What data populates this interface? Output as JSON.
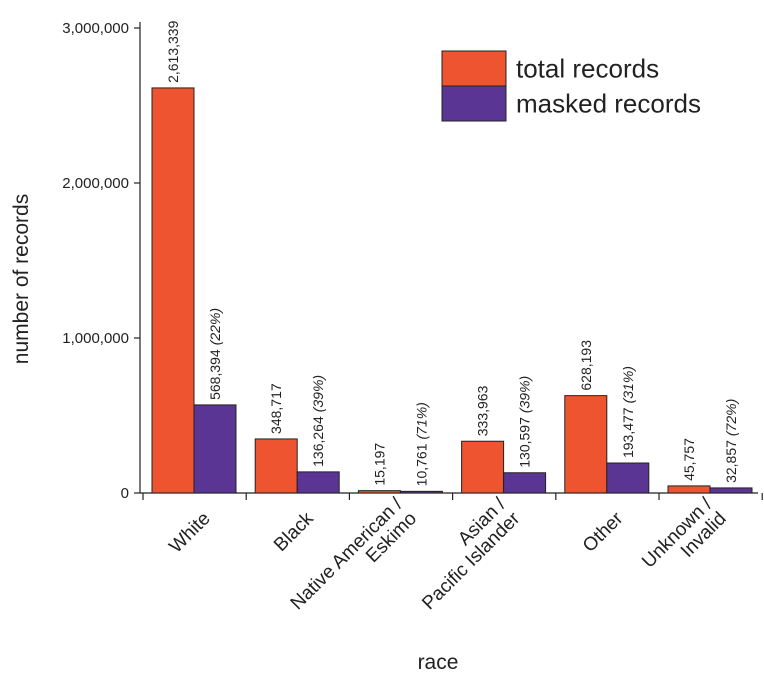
{
  "chart_data": {
    "type": "bar",
    "xlabel": "race",
    "ylabel": "number of records",
    "ylim": [
      0,
      3000000
    ],
    "yticks": [
      {
        "value": 0,
        "label": "0"
      },
      {
        "value": 1000000,
        "label": "1,000,000"
      },
      {
        "value": 2000000,
        "label": "2,000,000"
      },
      {
        "value": 3000000,
        "label": "3,000,000"
      }
    ],
    "categories": [
      [
        "White"
      ],
      [
        "Black"
      ],
      [
        "Native American /",
        "Eskimo"
      ],
      [
        "Asian /",
        "Pacific Islander"
      ],
      [
        "Other"
      ],
      [
        "Unknown /",
        "Invalid"
      ]
    ],
    "series": [
      {
        "name": "total records",
        "color": "#EE5430",
        "values": [
          2613339,
          348717,
          15197,
          333963,
          628193,
          45757
        ],
        "labels": [
          "2,613,339",
          "348,717",
          "15,197",
          "333,963",
          "628,193",
          "45,757"
        ],
        "pct_labels": [
          "",
          "",
          "",
          "",
          "",
          ""
        ]
      },
      {
        "name": "masked records",
        "color": "#5B3594",
        "values": [
          568394,
          136264,
          10761,
          130597,
          193477,
          32857
        ],
        "labels": [
          "568,394",
          "136,264",
          "10,761",
          "130,597",
          "193,477",
          "32,857"
        ],
        "pct_labels": [
          "(22%)",
          "(39%)",
          "(71%)",
          "(39%)",
          "(31%)",
          "(72%)"
        ]
      }
    ],
    "legend_position": "top-right",
    "grid": false
  }
}
